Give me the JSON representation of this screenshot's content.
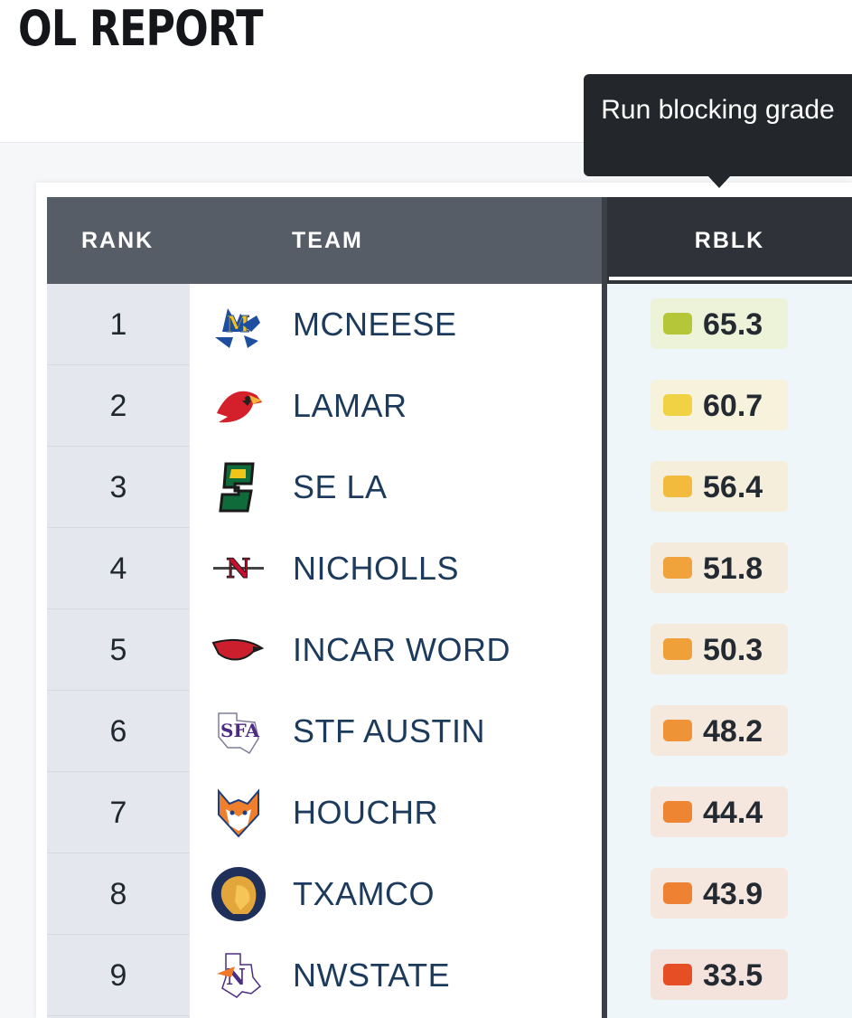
{
  "page": {
    "title": "OL REPORT"
  },
  "tooltip": {
    "text": "Run blocking grade"
  },
  "table": {
    "headers": {
      "rank": "RANK",
      "team": "TEAM",
      "rblk": "RBLK"
    },
    "rows": [
      {
        "rank": "1",
        "team": "MCNEESE",
        "logo": "mcneese-cowboy-logo",
        "rblk": "65.3",
        "swatch": "#b5c739",
        "pill": "#edf3d8"
      },
      {
        "rank": "2",
        "team": "LAMAR",
        "logo": "lamar-cardinal-logo",
        "rblk": "60.7",
        "swatch": "#f2d245",
        "pill": "#f6f2db"
      },
      {
        "rank": "3",
        "team": "SE LA",
        "logo": "se-louisiana-s-logo",
        "rblk": "56.4",
        "swatch": "#f2bb3d",
        "pill": "#f5eedb"
      },
      {
        "rank": "4",
        "team": "NICHOLLS",
        "logo": "nicholls-n-sword-logo",
        "rblk": "51.8",
        "swatch": "#f0a33b",
        "pill": "#f5ebdc"
      },
      {
        "rank": "5",
        "team": "INCAR WORD",
        "logo": "incarnate-word-cardinal-logo",
        "rblk": "50.3",
        "swatch": "#f0a038",
        "pill": "#f5ebdc"
      },
      {
        "rank": "6",
        "team": "STF AUSTIN",
        "logo": "sfa-texas-logo",
        "rblk": "48.2",
        "swatch": "#ef9337",
        "pill": "#f5e9dd"
      },
      {
        "rank": "7",
        "team": "HOUCHR",
        "logo": "houston-christian-husky-logo",
        "rblk": "44.4",
        "swatch": "#ee8533",
        "pill": "#f5e7dd"
      },
      {
        "rank": "8",
        "team": "TXAMCO",
        "logo": "tamu-commerce-lion-logo",
        "rblk": "43.9",
        "swatch": "#ee8232",
        "pill": "#f5e7dd"
      },
      {
        "rank": "9",
        "team": "NWSTATE",
        "logo": "northwestern-state-logo",
        "rblk": "33.5",
        "swatch": "#e64e26",
        "pill": "#f4e2dd"
      }
    ]
  }
}
